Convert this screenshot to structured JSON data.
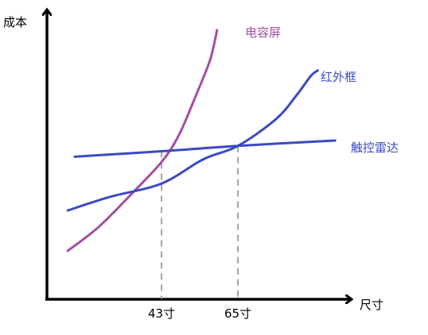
{
  "chart_data": {
    "type": "line",
    "xlabel": "尺寸",
    "ylabel": "成本",
    "x_ticks": [
      "43寸",
      "65寸"
    ],
    "tick_positions": [
      43,
      65
    ],
    "xlim": [
      10,
      95
    ],
    "ylim": [
      0,
      100
    ],
    "grid": false,
    "legend": "inline labels at curve ends",
    "series": [
      {
        "name": "电容屏",
        "color": "#a14fa0",
        "points": [
          [
            16,
            18
          ],
          [
            25,
            27
          ],
          [
            35,
            40
          ],
          [
            43,
            51
          ],
          [
            48,
            61
          ],
          [
            53,
            76
          ],
          [
            57,
            89
          ],
          [
            59,
            100
          ]
        ]
      },
      {
        "name": "红外框",
        "color": "#3c49c3",
        "points": [
          [
            16,
            33
          ],
          [
            28,
            38
          ],
          [
            43,
            43
          ],
          [
            55,
            52
          ],
          [
            65,
            57
          ],
          [
            76,
            67
          ],
          [
            82,
            76
          ],
          [
            86,
            83
          ],
          [
            88,
            85
          ]
        ]
      },
      {
        "name": "触控雷达",
        "color": "#3c49c3",
        "points": [
          [
            18,
            53
          ],
          [
            43,
            55
          ],
          [
            65,
            57
          ],
          [
            93,
            59
          ]
        ]
      }
    ],
    "reference_lines": [
      {
        "x": 43,
        "y": 55
      },
      {
        "x": 65,
        "y": 57
      }
    ]
  }
}
